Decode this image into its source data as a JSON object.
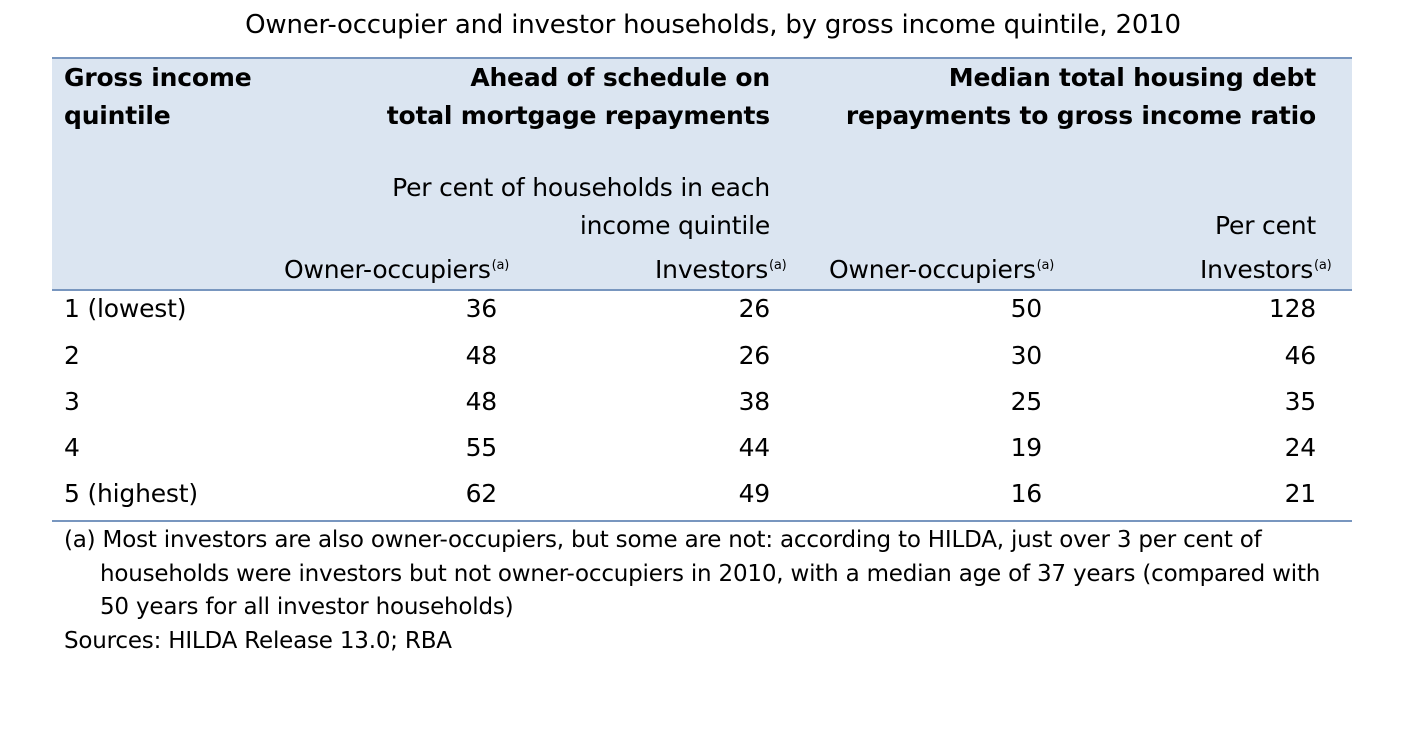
{
  "title": "Owner-occupier and investor households, by gross income quintile, 2010",
  "header": {
    "quintile_line1": "Gross income",
    "quintile_line2": "quintile",
    "ahead_line1": "Ahead of schedule on",
    "ahead_line2": "total mortgage repayments",
    "ahead_units_line1": "Per cent of households in each",
    "ahead_units_line2": "income quintile",
    "median_line1": "Median total housing debt",
    "median_line2": "repayments to gross income ratio",
    "median_units": "Per cent",
    "col_owner_ahead": "Owner-occupiers",
    "col_investor_ahead": "Investors",
    "col_owner_median": "Owner-occupiers",
    "col_investor_median": "Investors",
    "note_marker": "(a)"
  },
  "rows": [
    {
      "quintile": "1 (lowest)",
      "ahead_owner": "36",
      "ahead_investor": "26",
      "median_owner": "50",
      "median_investor": "128"
    },
    {
      "quintile": "2",
      "ahead_owner": "48",
      "ahead_investor": "26",
      "median_owner": "30",
      "median_investor": "46"
    },
    {
      "quintile": "3",
      "ahead_owner": "48",
      "ahead_investor": "38",
      "median_owner": "25",
      "median_investor": "35"
    },
    {
      "quintile": "4",
      "ahead_owner": "55",
      "ahead_investor": "44",
      "median_owner": "19",
      "median_investor": "24"
    },
    {
      "quintile": "5 (highest)",
      "ahead_owner": "62",
      "ahead_investor": "49",
      "median_owner": "16",
      "median_investor": "21"
    }
  ],
  "footnote": {
    "line1": "(a) Most investors are also owner-occupiers, but some are not: according to HILDA, just over 3 per cent of",
    "line2": "households were investors but not owner-occupiers in 2010, with a median age of 37 years (compared with",
    "line3": "50 years for all investor households)"
  },
  "sources": "Sources: HILDA Release 13.0; RBA",
  "colors": {
    "header_background": "#dbe5f1",
    "rule": "#7896bf"
  }
}
